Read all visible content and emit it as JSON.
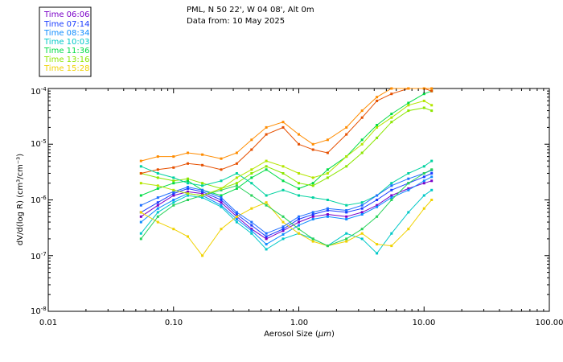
{
  "header": {
    "line1": "PML, N 50 22', W 04 08', Alt 0m",
    "line2": "Data from: 10 May 2025"
  },
  "chart_data": {
    "type": "line",
    "title": "PML, N 50 22', W 04 08', Alt 0m",
    "subtitle": "Data from: 10 May 2025",
    "xlabel_prefix": "Aerosol Size (",
    "xlabel_unit": "µm",
    "xlabel_suffix": ")",
    "ylabel": "dV/d(log R) (cm³/cm⁻³)",
    "xscale": "log",
    "yscale": "log",
    "xlim": [
      0.01,
      100
    ],
    "ylim": [
      1e-08,
      0.0001
    ],
    "x_tick_labels": [
      "0.01",
      "0.10",
      "1.00",
      "10.00",
      "100.00"
    ],
    "y_tick_labels": [
      {
        "base": "10",
        "exp": "-4"
      },
      {
        "base": "10",
        "exp": "-5"
      },
      {
        "base": "10",
        "exp": "-6"
      },
      {
        "base": "10",
        "exp": "-7"
      },
      {
        "base": "10",
        "exp": "-8"
      }
    ],
    "legend_position": "top-left",
    "x": [
      0.055,
      0.075,
      0.1,
      0.13,
      0.17,
      0.24,
      0.32,
      0.42,
      0.55,
      0.75,
      1.0,
      1.3,
      1.7,
      2.4,
      3.2,
      4.2,
      5.5,
      7.5,
      10.0,
      11.5
    ],
    "series": [
      {
        "name": "Time 06:06",
        "color": "#7a00c8",
        "values": [
          5e-07,
          8e-07,
          1.2e-06,
          1.4e-06,
          1.3e-06,
          9e-07,
          5e-07,
          3e-07,
          2e-07,
          2.8e-07,
          4e-07,
          5e-07,
          5.5e-07,
          5e-07,
          6e-07,
          8e-07,
          1.2e-06,
          1.6e-06,
          2e-06,
          2.2e-06
        ]
      },
      {
        "name": "Time 07:14",
        "color": "#1a3cff",
        "values": [
          6e-07,
          9e-07,
          1.3e-06,
          1.6e-06,
          1.4e-06,
          1e-06,
          5.5e-07,
          3.5e-07,
          2.2e-07,
          3e-07,
          4.5e-07,
          5.5e-07,
          6.5e-07,
          6e-07,
          7e-07,
          1e-06,
          1.5e-06,
          2e-06,
          2.6e-06,
          3e-06
        ]
      },
      {
        "name": "Time 08:34",
        "color": "#0f8cff",
        "values": [
          4e-07,
          7e-07,
          1e-06,
          1.3e-06,
          1.2e-06,
          8e-07,
          4.5e-07,
          2.8e-07,
          1.6e-07,
          2.4e-07,
          3.5e-07,
          4.5e-07,
          5e-07,
          4.5e-07,
          5.5e-07,
          7.5e-07,
          1.1e-06,
          1.5e-06,
          2.2e-06,
          2.6e-06
        ]
      },
      {
        "name": "Time 10:03",
        "color": "#00c8c8",
        "values": [
          2.5e-07,
          6e-07,
          9e-07,
          1.2e-06,
          1.1e-06,
          7.5e-07,
          4e-07,
          2.5e-07,
          1.3e-07,
          2e-07,
          2.5e-07,
          2e-07,
          1.5e-07,
          2.5e-07,
          2e-07,
          1.1e-07,
          2.5e-07,
          6e-07,
          1.2e-06,
          1.5e-06
        ]
      },
      {
        "name": "Time 11:36",
        "color": "#00dc46",
        "values": [
          1.2e-06,
          1.6e-06,
          2e-06,
          2.2e-06,
          1.5e-06,
          1.2e-06,
          1.6e-06,
          2.5e-06,
          3.5e-06,
          2.2e-06,
          1.6e-06,
          2e-06,
          3.5e-06,
          6e-06,
          1.2e-05,
          2.2e-05,
          3.5e-05,
          5.5e-05,
          8e-05,
          9e-05
        ]
      },
      {
        "name": "Time 13:16",
        "color": "#8ce600",
        "values": [
          3e-06,
          2.5e-06,
          2.2e-06,
          2.4e-06,
          2e-06,
          1.6e-06,
          2e-06,
          3e-06,
          4e-06,
          3e-06,
          2e-06,
          1.8e-06,
          2.5e-06,
          4e-06,
          7e-06,
          1.3e-05,
          2.5e-05,
          4e-05,
          4.5e-05,
          4e-05
        ]
      },
      {
        "name": "Time 15:28",
        "color": "#f0d200",
        "values": [
          6e-07,
          4e-07,
          3e-07,
          2.2e-07,
          1e-07,
          3e-07,
          5e-07,
          7e-07,
          9e-07,
          4e-07,
          2.5e-07,
          1.8e-07,
          1.5e-07,
          1.8e-07,
          2.5e-07,
          1.6e-07,
          1.5e-07,
          3e-07,
          7e-07,
          1e-06
        ]
      },
      {
        "name": "",
        "color": "#e65000",
        "values": [
          3e-06,
          3.5e-06,
          3.8e-06,
          4.5e-06,
          4.2e-06,
          3.5e-06,
          4.5e-06,
          8e-06,
          1.5e-05,
          2e-05,
          1e-05,
          8e-06,
          7e-06,
          1.5e-05,
          3e-05,
          6e-05,
          8e-05,
          0.0001,
          0.0001,
          9e-05
        ]
      },
      {
        "name": "",
        "color": "#ff8c00",
        "values": [
          5e-06,
          6e-06,
          6e-06,
          7e-06,
          6.5e-06,
          5.5e-06,
          7e-06,
          1.2e-05,
          2e-05,
          2.5e-05,
          1.5e-05,
          1e-05,
          1.2e-05,
          2e-05,
          4e-05,
          7e-05,
          0.0001,
          0.0001,
          0.0001,
          0.0001
        ]
      },
      {
        "name": "",
        "color": "#00d2a0",
        "values": [
          4e-06,
          3e-06,
          2.5e-06,
          2e-06,
          1.8e-06,
          2.2e-06,
          3e-06,
          2e-06,
          1.2e-06,
          1.5e-06,
          1.2e-06,
          1.1e-06,
          1e-06,
          8e-07,
          9e-07,
          1.2e-06,
          2e-06,
          3e-06,
          4e-06,
          5e-06
        ]
      },
      {
        "name": "",
        "color": "#1e6eff",
        "values": [
          8e-07,
          1.1e-06,
          1.4e-06,
          1.7e-06,
          1.5e-06,
          1.1e-06,
          6e-07,
          4e-07,
          2.5e-07,
          3.3e-07,
          5e-07,
          6e-07,
          7e-07,
          6.5e-07,
          8e-07,
          1.2e-06,
          1.8e-06,
          2.4e-06,
          3e-06,
          3.4e-06
        ]
      },
      {
        "name": "",
        "color": "#28d25a",
        "values": [
          2e-07,
          5e-07,
          8e-07,
          1e-06,
          1.2e-06,
          1.5e-06,
          1.8e-06,
          1.2e-06,
          8e-07,
          5e-07,
          3e-07,
          2e-07,
          1.5e-07,
          2e-07,
          3e-07,
          5e-07,
          1e-06,
          2e-06,
          3e-06,
          3.5e-06
        ]
      },
      {
        "name": "",
        "color": "#b4e600",
        "values": [
          2e-06,
          1.8e-06,
          1.5e-06,
          1.3e-06,
          1.2e-06,
          1.6e-06,
          2.5e-06,
          3.5e-06,
          5e-06,
          4e-06,
          3e-06,
          2.5e-06,
          3e-06,
          6e-06,
          1e-05,
          2e-05,
          3e-05,
          5e-05,
          6e-05,
          5e-05
        ]
      }
    ]
  }
}
